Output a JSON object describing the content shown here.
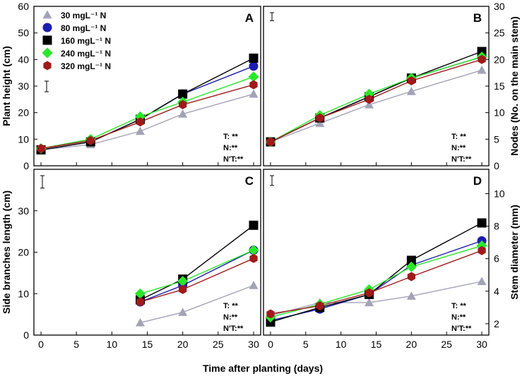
{
  "figure": {
    "shared_xlabel": "Time after planting (days)"
  },
  "legend": [
    {
      "label": "30 mgL⁻¹ N",
      "marker": "triangle-icon",
      "color": "#a3a3b8"
    },
    {
      "label": "80 mgL⁻¹ N",
      "marker": "circle-icon",
      "color": "#1c1cb0"
    },
    {
      "label": "160 mgL⁻¹ N",
      "marker": "square-icon",
      "color": "#000000"
    },
    {
      "label": "240 mgL⁻¹ N",
      "marker": "diamond-icon",
      "color": "#29e829"
    },
    {
      "label": "320 mgL⁻¹ N",
      "marker": "hexagon-icon",
      "color": "#a01a1a"
    }
  ],
  "chart_data": [
    {
      "panel": "A",
      "type": "line",
      "ylabel": "Plant height (cm)",
      "xlabel": "Time after planting (days)",
      "xlim": [
        -1,
        31
      ],
      "ylim": [
        0,
        60
      ],
      "xticks": [
        0,
        5,
        10,
        15,
        20,
        25,
        30
      ],
      "yticks": [
        0,
        10,
        20,
        30,
        40,
        50,
        60
      ],
      "stats": [
        "T: **",
        "N:**",
        "N'T:**"
      ],
      "error_bar_ref": 4,
      "series": [
        {
          "name": "30 mgL-1 N",
          "x": [
            0,
            7,
            14,
            20,
            30
          ],
          "values": [
            6.0,
            8.0,
            13.0,
            19.5,
            27.0
          ]
        },
        {
          "name": "80 mgL-1 N",
          "x": [
            0,
            7,
            14,
            20,
            30
          ],
          "values": [
            6.0,
            9.0,
            17.5,
            27.0,
            37.5
          ]
        },
        {
          "name": "160 mgL-1 N",
          "x": [
            0,
            7,
            14,
            20,
            30
          ],
          "values": [
            6.0,
            9.0,
            17.5,
            27.0,
            40.5
          ]
        },
        {
          "name": "240 mgL-1 N",
          "x": [
            0,
            7,
            14,
            20,
            30
          ],
          "values": [
            6.5,
            10.0,
            18.5,
            24.0,
            33.5
          ]
        },
        {
          "name": "320 mgL-1 N",
          "x": [
            0,
            7,
            14,
            20,
            30
          ],
          "values": [
            6.5,
            9.5,
            16.5,
            23.0,
            30.5
          ]
        }
      ]
    },
    {
      "panel": "B",
      "type": "line",
      "ylabel": "Nodes (No. on the main stem)",
      "xlabel": "Time after planting (days)",
      "xlim": [
        -1,
        31
      ],
      "ylim": [
        0,
        30
      ],
      "xticks": [
        0,
        5,
        10,
        15,
        20,
        25,
        30
      ],
      "yticks": [
        0,
        5,
        10,
        15,
        20,
        25,
        30
      ],
      "stats": [
        "T: **",
        "N:**",
        "N'T:**"
      ],
      "error_bar_ref": 1.5,
      "series": [
        {
          "name": "30 mgL-1 N",
          "x": [
            0,
            7,
            14,
            20,
            30
          ],
          "values": [
            4.5,
            8.0,
            11.5,
            14.0,
            18.0
          ]
        },
        {
          "name": "80 mgL-1 N",
          "x": [
            0,
            7,
            14,
            20,
            30
          ],
          "values": [
            4.5,
            9.0,
            13.0,
            16.5,
            20.5
          ]
        },
        {
          "name": "160 mgL-1 N",
          "x": [
            0,
            7,
            14,
            20,
            30
          ],
          "values": [
            4.5,
            9.0,
            13.0,
            16.5,
            21.5
          ]
        },
        {
          "name": "240 mgL-1 N",
          "x": [
            0,
            7,
            14,
            20,
            30
          ],
          "values": [
            4.5,
            9.5,
            13.5,
            16.5,
            20.5
          ]
        },
        {
          "name": "320 mgL-1 N",
          "x": [
            0,
            7,
            14,
            20,
            30
          ],
          "values": [
            4.5,
            9.0,
            12.5,
            16.0,
            20.0
          ]
        }
      ]
    },
    {
      "panel": "C",
      "type": "line",
      "ylabel": "Side branches length (cm)",
      "xlabel": "Time after planting (days)",
      "xlim": [
        -1,
        31
      ],
      "ylim": [
        0,
        40
      ],
      "xticks": [
        0,
        5,
        10,
        15,
        20,
        25,
        30
      ],
      "yticks": [
        0,
        10,
        20,
        30
      ],
      "stats": [
        "T: **",
        "N:**",
        "N'T:**"
      ],
      "error_bar_ref": 3,
      "series": [
        {
          "name": "30 mgL-1 N",
          "x": [
            14,
            20,
            30
          ],
          "values": [
            3.0,
            5.5,
            12.0
          ]
        },
        {
          "name": "80 mgL-1 N",
          "x": [
            14,
            20,
            30
          ],
          "values": [
            8.0,
            12.0,
            20.5
          ]
        },
        {
          "name": "160 mgL-1 N",
          "x": [
            14,
            20,
            30
          ],
          "values": [
            8.5,
            13.5,
            26.5
          ]
        },
        {
          "name": "240 mgL-1 N",
          "x": [
            14,
            20,
            30
          ],
          "values": [
            10.0,
            13.0,
            20.5
          ]
        },
        {
          "name": "320 mgL-1 N",
          "x": [
            14,
            20,
            30
          ],
          "values": [
            8.0,
            11.0,
            18.5
          ]
        }
      ]
    },
    {
      "panel": "D",
      "type": "line",
      "ylabel": "Stem diameter (mm)",
      "xlabel": "Time after planting (days)",
      "xlim": [
        -1,
        31
      ],
      "ylim": [
        1.3,
        11.5
      ],
      "xticks": [
        0,
        5,
        10,
        15,
        20,
        25,
        30
      ],
      "yticks": [
        2,
        4,
        6,
        8,
        10
      ],
      "stats": [
        "T: **",
        "N:**",
        "N'T:**"
      ],
      "error_bar_ref": 0.6,
      "series": [
        {
          "name": "30 mgL-1 N",
          "x": [
            0,
            7,
            14,
            20,
            30
          ],
          "values": [
            2.5,
            3.3,
            3.3,
            3.7,
            4.6
          ]
        },
        {
          "name": "80 mgL-1 N",
          "x": [
            0,
            7,
            14,
            20,
            30
          ],
          "values": [
            2.2,
            2.9,
            3.8,
            5.6,
            7.1
          ]
        },
        {
          "name": "160 mgL-1 N",
          "x": [
            0,
            7,
            14,
            20,
            30
          ],
          "values": [
            2.1,
            3.0,
            3.8,
            5.9,
            8.2
          ]
        },
        {
          "name": "240 mgL-1 N",
          "x": [
            0,
            7,
            14,
            20,
            30
          ],
          "values": [
            2.4,
            3.2,
            4.1,
            5.5,
            6.8
          ]
        },
        {
          "name": "320 mgL-1 N",
          "x": [
            0,
            7,
            14,
            20,
            30
          ],
          "values": [
            2.6,
            3.1,
            3.9,
            4.9,
            6.5
          ]
        }
      ]
    }
  ]
}
